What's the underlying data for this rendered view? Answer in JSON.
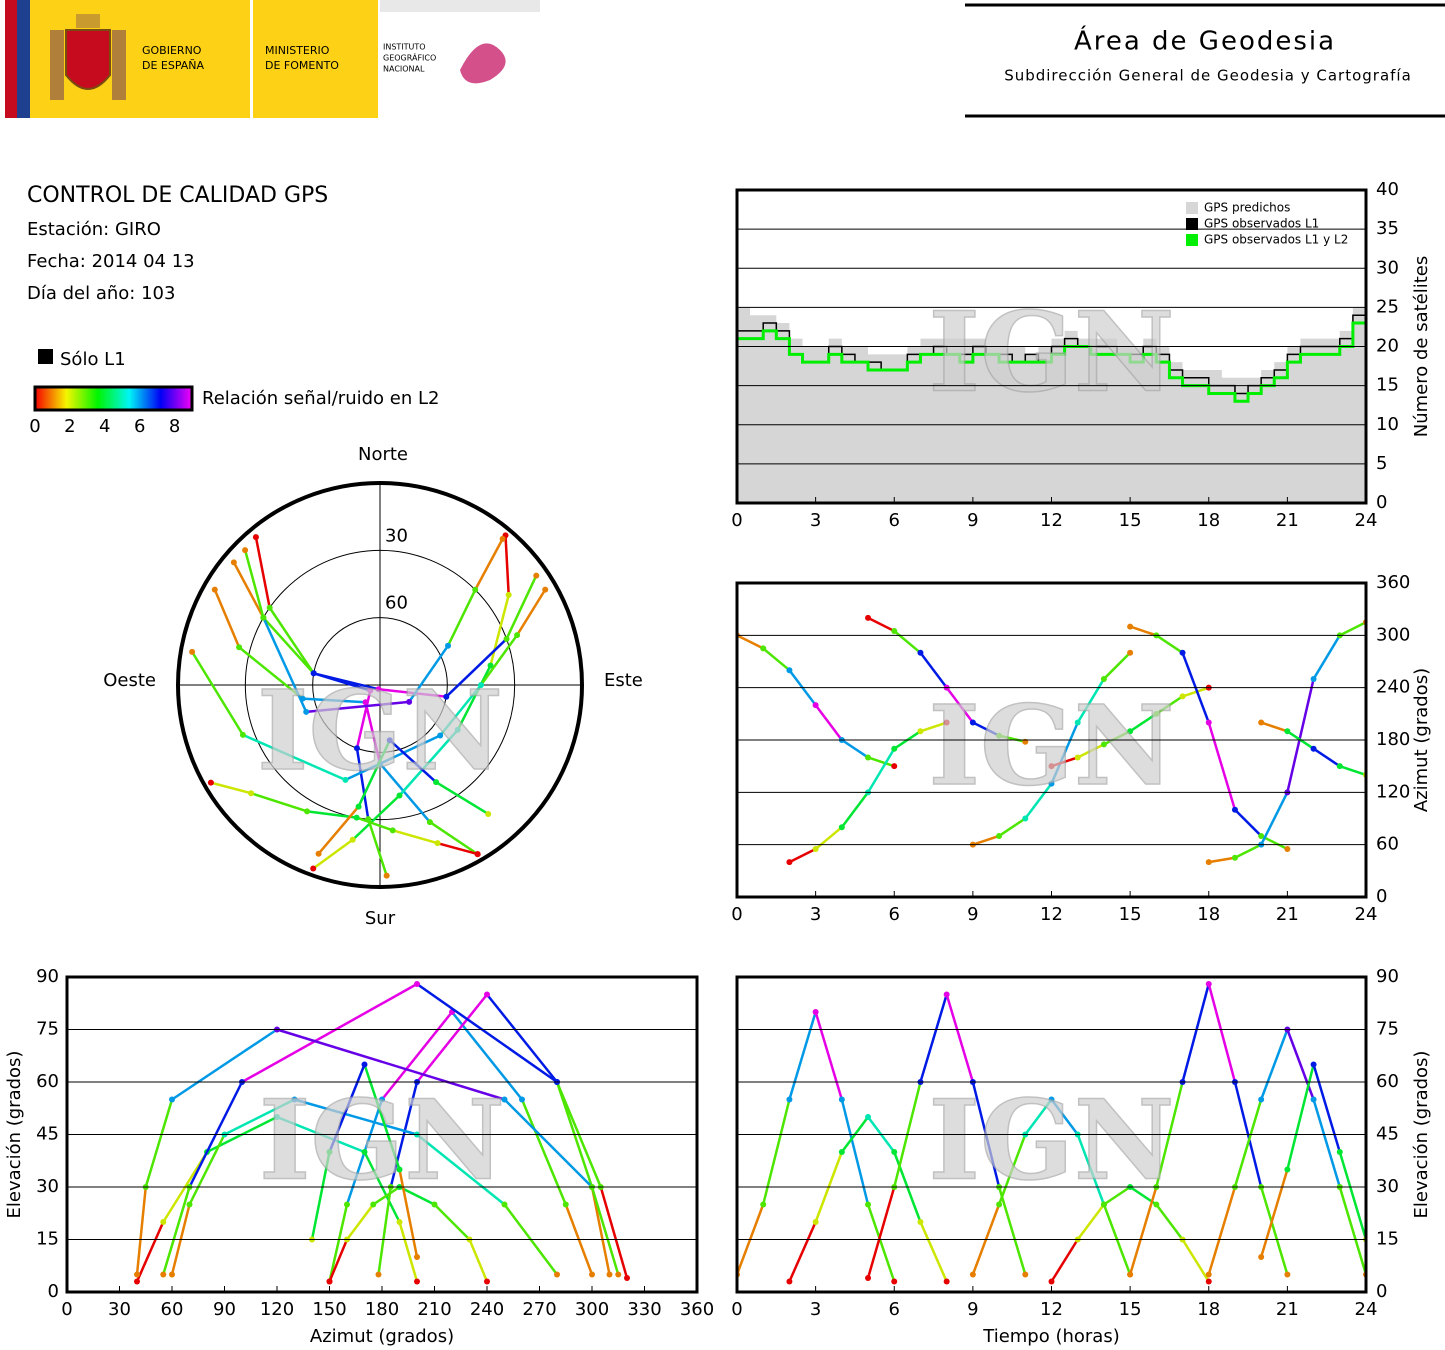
{
  "header": {
    "gobierno": [
      "GOBIERNO",
      "DE ESPAÑA"
    ],
    "ministerio": [
      "MINISTERIO",
      "DE FOMENTO"
    ],
    "instituto": [
      "INSTITUTO",
      "GEOGRÁFICO",
      "NACIONAL"
    ],
    "area": "Área de Geodesia",
    "subdireccion": "Subdirección General de Geodesia y Cartografía"
  },
  "report": {
    "title": "CONTROL DE CALIDAD GPS",
    "station": "Estación: GIRO",
    "date": "Fecha: 2014 04 13",
    "doy": "Día del año: 103",
    "l1_only": "Sólo L1",
    "snr_label": "Relación señal/ruido en L2",
    "snr_lim": [
      0,
      9
    ],
    "snr_ticks": [
      0,
      2,
      4,
      6,
      8
    ]
  },
  "watermark": "IGN",
  "tracks": [
    {
      "t": [
        0,
        1,
        2,
        3,
        4,
        5,
        6
      ],
      "az": [
        300,
        285,
        260,
        220,
        180,
        160,
        150
      ],
      "el": [
        5,
        25,
        55,
        80,
        55,
        25,
        3
      ],
      "snr": [
        1,
        3,
        6,
        9,
        6,
        3,
        0
      ]
    },
    {
      "t": [
        2,
        3,
        4,
        5,
        6,
        7,
        8
      ],
      "az": [
        40,
        55,
        80,
        120,
        170,
        190,
        200
      ],
      "el": [
        3,
        20,
        40,
        50,
        40,
        20,
        3
      ],
      "snr": [
        0,
        2,
        4,
        5,
        4,
        2,
        0
      ]
    },
    {
      "t": [
        5,
        6,
        7,
        8,
        9,
        10,
        11
      ],
      "az": [
        320,
        305,
        280,
        240,
        200,
        185,
        178
      ],
      "el": [
        4,
        30,
        60,
        85,
        60,
        30,
        5
      ],
      "snr": [
        0,
        3,
        7,
        9,
        7,
        3,
        1
      ]
    },
    {
      "t": [
        9,
        10,
        11,
        12,
        13,
        14,
        15
      ],
      "az": [
        60,
        70,
        90,
        130,
        200,
        250,
        280
      ],
      "el": [
        5,
        25,
        45,
        55,
        45,
        25,
        5
      ],
      "snr": [
        1,
        3,
        5,
        6,
        5,
        3,
        1
      ]
    },
    {
      "t": [
        12,
        13,
        14,
        15,
        16,
        17,
        18
      ],
      "az": [
        150,
        160,
        175,
        190,
        210,
        230,
        240
      ],
      "el": [
        3,
        15,
        25,
        30,
        25,
        15,
        3
      ],
      "snr": [
        0,
        2,
        3,
        4,
        3,
        2,
        0
      ]
    },
    {
      "t": [
        15,
        16,
        17,
        18,
        19,
        20,
        21
      ],
      "az": [
        310,
        300,
        280,
        200,
        100,
        70,
        55
      ],
      "el": [
        5,
        30,
        60,
        88,
        60,
        30,
        5
      ],
      "snr": [
        1,
        3,
        7,
        9,
        7,
        3,
        1
      ]
    },
    {
      "t": [
        18,
        19,
        20,
        21,
        22,
        23,
        24
      ],
      "az": [
        40,
        45,
        60,
        120,
        250,
        300,
        315
      ],
      "el": [
        5,
        30,
        55,
        75,
        55,
        30,
        5
      ],
      "snr": [
        1,
        3,
        6,
        8,
        6,
        3,
        1
      ]
    },
    {
      "t": [
        20,
        21,
        22,
        23,
        24
      ],
      "az": [
        200,
        190,
        170,
        150,
        140
      ],
      "el": [
        10,
        35,
        65,
        40,
        15
      ],
      "snr": [
        1,
        4,
        7,
        4,
        2
      ]
    }
  ],
  "chart_data": [
    {
      "type": "step",
      "y_label": "Número de satélites",
      "xlim": [
        0,
        24
      ],
      "xticks": [
        0,
        3,
        6,
        9,
        12,
        15,
        18,
        21,
        24
      ],
      "ylim": [
        0,
        40
      ],
      "yticks": [
        0,
        5,
        10,
        15,
        20,
        25,
        30,
        35,
        40
      ],
      "grid": true,
      "axis_side": "right",
      "legend": "top-right",
      "x": [
        0,
        0.5,
        1,
        1.5,
        2,
        2.5,
        3,
        3.5,
        4,
        4.5,
        5,
        5.5,
        6,
        6.5,
        7,
        7.5,
        8,
        8.5,
        9,
        9.5,
        10,
        10.5,
        11,
        11.5,
        12,
        12.5,
        13,
        13.5,
        14,
        14.5,
        15,
        15.5,
        16,
        16.5,
        17,
        17.5,
        18,
        18.5,
        19,
        19.5,
        20,
        20.5,
        21,
        21.5,
        22,
        22.5,
        23,
        23.5,
        24
      ],
      "series": [
        {
          "name": "GPS predichos",
          "color": "#d6d6d6",
          "values": [
            25,
            24,
            24,
            23,
            21,
            20,
            20,
            21,
            20,
            20,
            19,
            19,
            19,
            20,
            21,
            21,
            21,
            21,
            21,
            20,
            20,
            20,
            19,
            20,
            21,
            22,
            21,
            21,
            21,
            20,
            20,
            21,
            20,
            18,
            17,
            17,
            17,
            16,
            16,
            16,
            17,
            18,
            20,
            21,
            21,
            21,
            22,
            25,
            24
          ]
        },
        {
          "name": "GPS observados L1",
          "color": "#000000",
          "values": [
            22,
            22,
            23,
            22,
            19,
            18,
            18,
            20,
            19,
            18,
            18,
            17,
            17,
            19,
            19,
            20,
            19,
            19,
            20,
            19,
            19,
            18,
            19,
            18,
            20,
            21,
            20,
            20,
            20,
            19,
            19,
            20,
            19,
            17,
            16,
            16,
            15,
            15,
            14,
            15,
            16,
            17,
            19,
            20,
            20,
            20,
            21,
            24,
            23
          ]
        },
        {
          "name": "GPS observados L1 y L2",
          "color": "#00ee00",
          "values": [
            21,
            21,
            22,
            21,
            19,
            18,
            18,
            19,
            18,
            18,
            17,
            17,
            17,
            18,
            19,
            19,
            19,
            18,
            19,
            19,
            18,
            18,
            18,
            18,
            19,
            20,
            20,
            19,
            19,
            19,
            18,
            19,
            18,
            16,
            15,
            15,
            14,
            14,
            13,
            14,
            15,
            16,
            18,
            19,
            19,
            19,
            20,
            23,
            22
          ]
        }
      ]
    },
    {
      "type": "polar",
      "north": "Norte",
      "south": "Sur",
      "west": "Oeste",
      "east": "Este",
      "rlim": [
        90,
        0
      ],
      "rticks": [
        30,
        60
      ]
    },
    {
      "type": "scatter",
      "y_label": "Azimut (grados)",
      "xlim": [
        0,
        24
      ],
      "xticks": [
        0,
        3,
        6,
        9,
        12,
        15,
        18,
        21,
        24
      ],
      "ylim": [
        0,
        360
      ],
      "yticks": [
        0,
        60,
        120,
        180,
        240,
        300,
        360
      ],
      "grid": true,
      "axis_side": "right"
    },
    {
      "type": "scatter",
      "x_label": "Azimut (grados)",
      "y_label": "Elevación (grados)",
      "xlim": [
        0,
        360
      ],
      "xticks": [
        0,
        30,
        60,
        90,
        120,
        150,
        180,
        210,
        240,
        270,
        300,
        330,
        360
      ],
      "ylim": [
        0,
        90
      ],
      "yticks": [
        0,
        15,
        30,
        45,
        60,
        75,
        90
      ],
      "grid": true,
      "axis_side": "left"
    },
    {
      "type": "scatter",
      "x_label": "Tiempo (horas)",
      "y_label": "Elevación (grados)",
      "xlim": [
        0,
        24
      ],
      "xticks": [
        0,
        3,
        6,
        9,
        12,
        15,
        18,
        21,
        24
      ],
      "ylim": [
        0,
        90
      ],
      "yticks": [
        0,
        15,
        30,
        45,
        60,
        75,
        90
      ],
      "grid": true,
      "axis_side": "right"
    }
  ]
}
